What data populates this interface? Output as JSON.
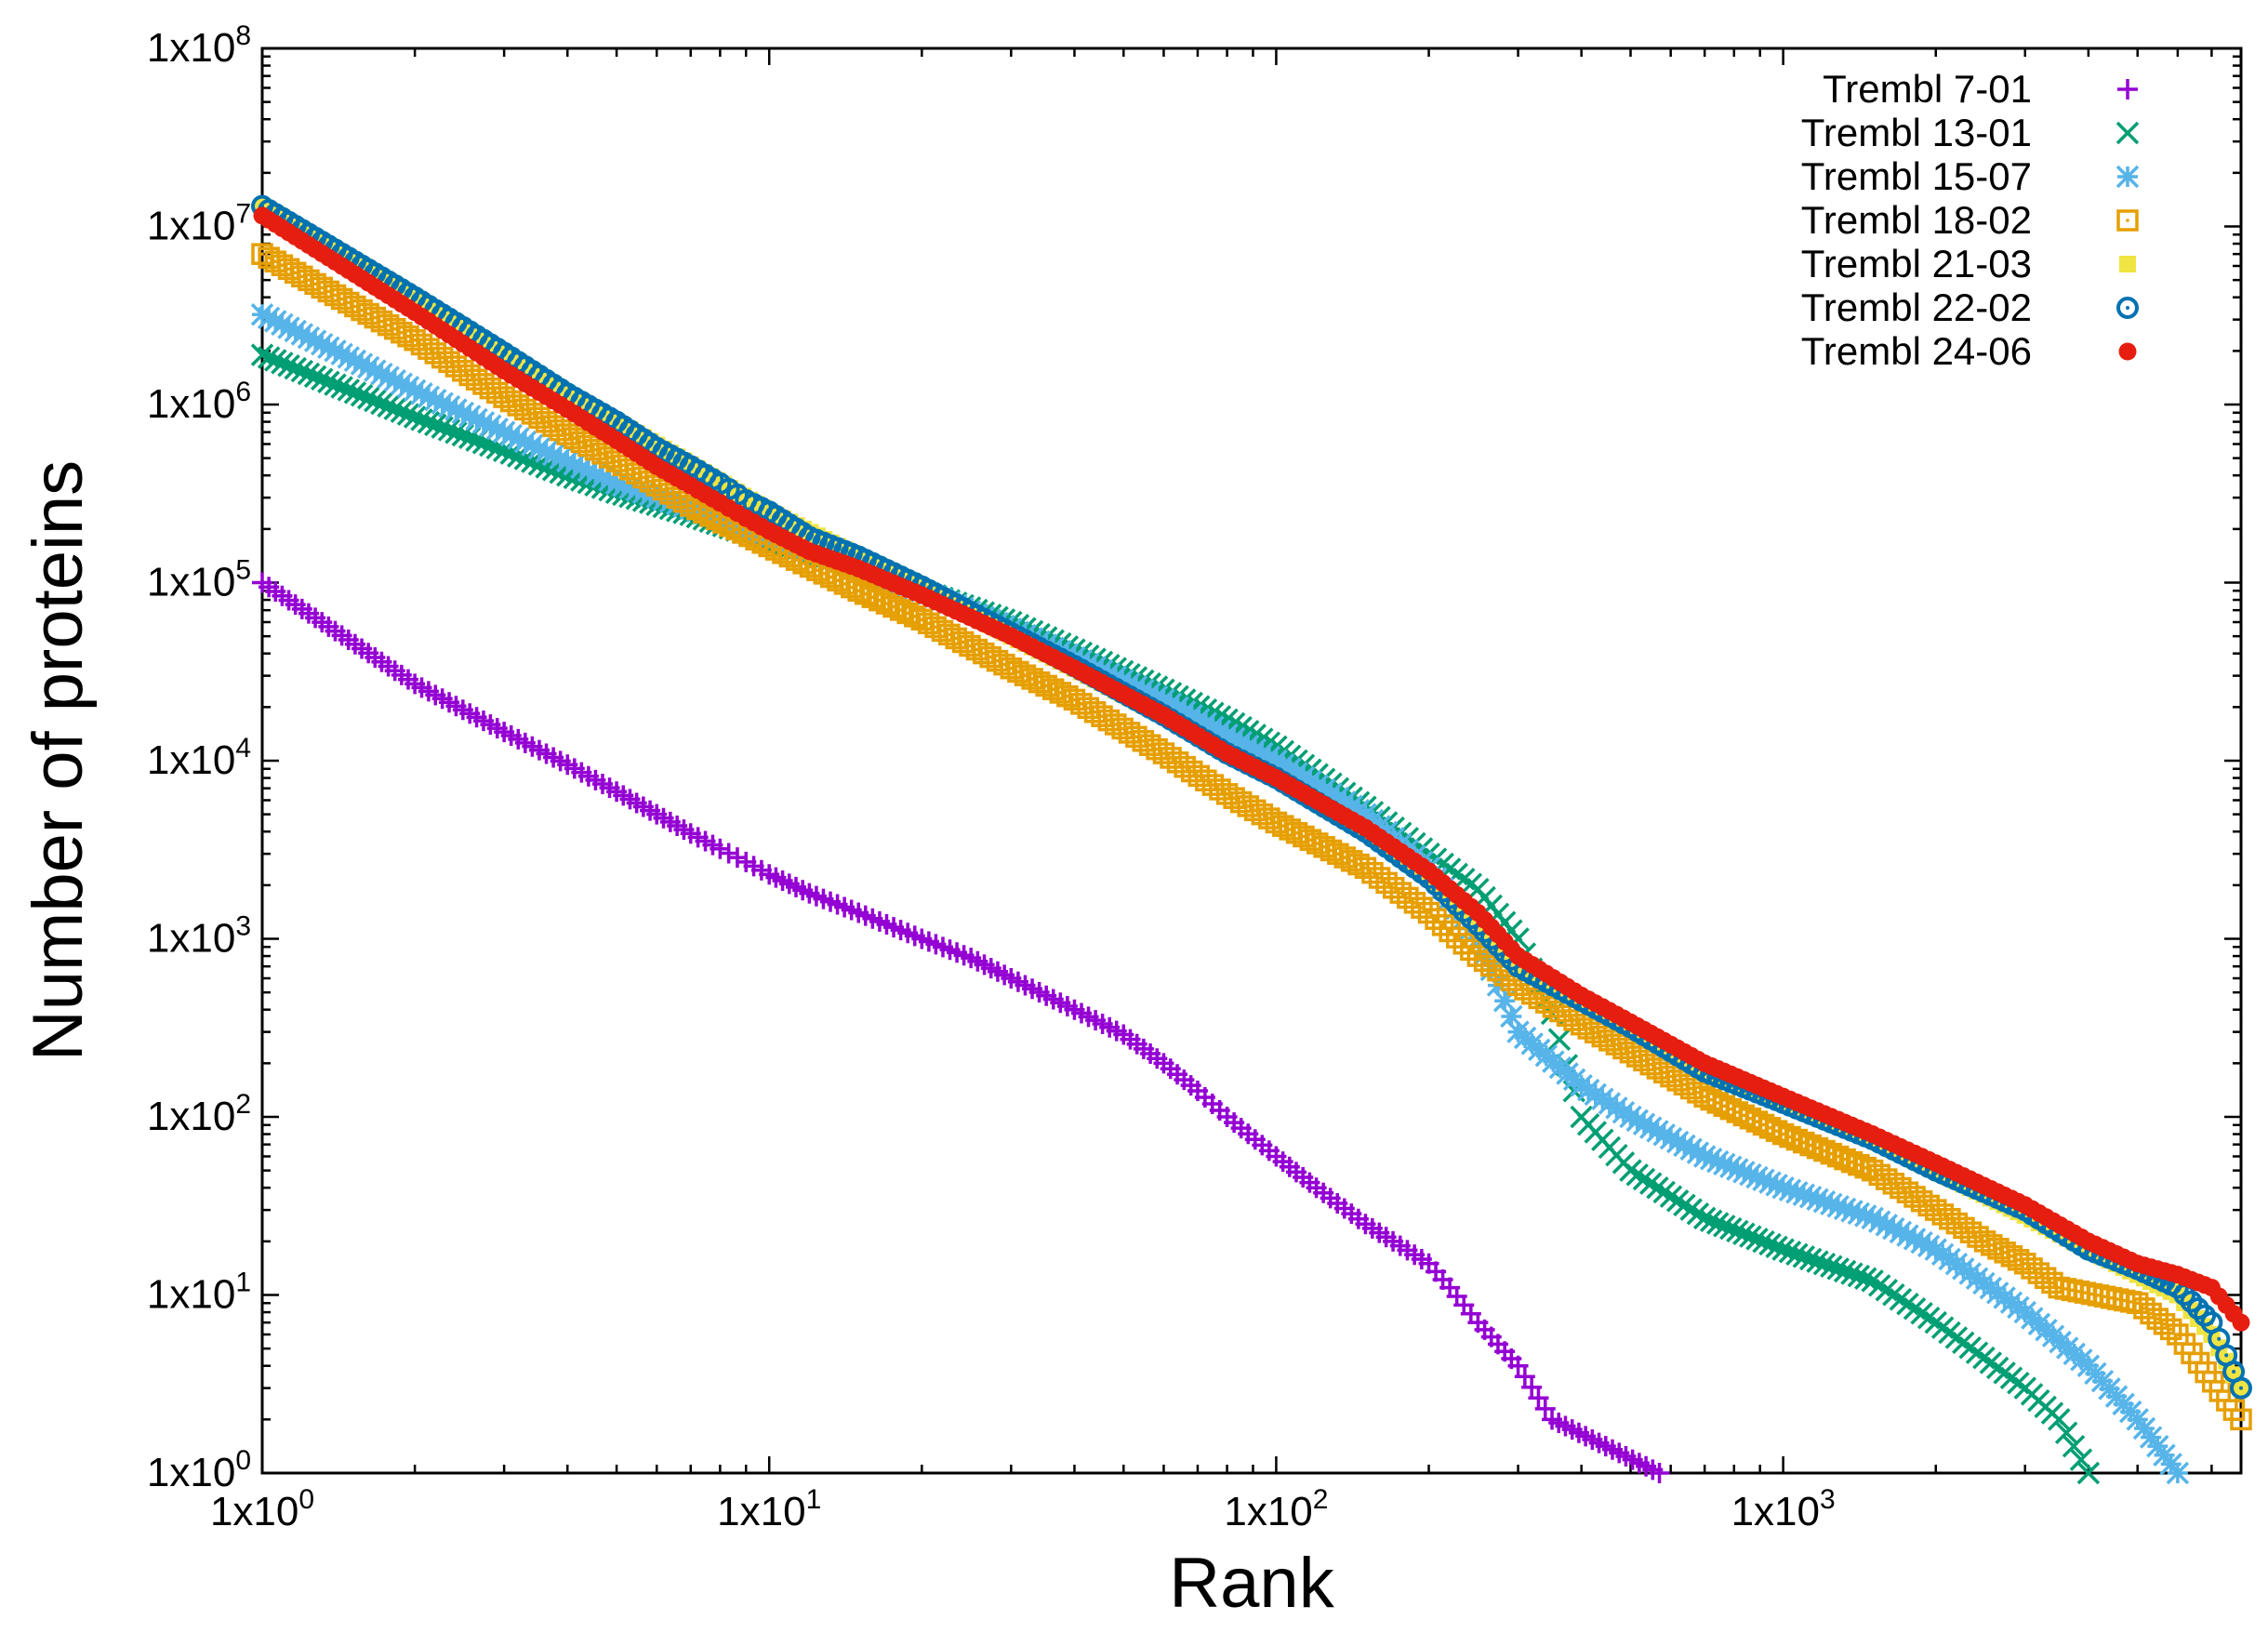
{
  "chart_data": {
    "type": "scatter",
    "xscale": "log",
    "yscale": "log",
    "xlabel": "Rank",
    "ylabel": "Number of proteins",
    "xlim": [
      1,
      8000
    ],
    "ylim": [
      1,
      100000000
    ],
    "grid": false,
    "legend_position": "top-right",
    "x_tick_labels": [
      {
        "value": 1,
        "mantissa": "1x10",
        "exp": "0"
      },
      {
        "value": 10,
        "mantissa": "1x10",
        "exp": "1"
      },
      {
        "value": 100,
        "mantissa": "1x10",
        "exp": "2"
      },
      {
        "value": 1000,
        "mantissa": "1x10",
        "exp": "3"
      }
    ],
    "y_tick_labels": [
      {
        "value": 1,
        "mantissa": "1x10",
        "exp": "0"
      },
      {
        "value": 10,
        "mantissa": "1x10",
        "exp": "1"
      },
      {
        "value": 100,
        "mantissa": "1x10",
        "exp": "2"
      },
      {
        "value": 1000,
        "mantissa": "1x10",
        "exp": "3"
      },
      {
        "value": 10000,
        "mantissa": "1x10",
        "exp": "4"
      },
      {
        "value": 100000,
        "mantissa": "1x10",
        "exp": "5"
      },
      {
        "value": 1000000,
        "mantissa": "1x10",
        "exp": "6"
      },
      {
        "value": 10000000,
        "mantissa": "1x10",
        "exp": "7"
      },
      {
        "value": 100000000,
        "mantissa": "1x10",
        "exp": "8"
      }
    ],
    "series": [
      {
        "name": "Trembl 7-01",
        "marker": "plus",
        "color": "#9400d3",
        "x": [
          1,
          2,
          3,
          4,
          5,
          6,
          7,
          8,
          9,
          10,
          12,
          15,
          20,
          25,
          30,
          40,
          50,
          60,
          70,
          80,
          100,
          120,
          150,
          170,
          200,
          220,
          250,
          300,
          350,
          570
        ],
        "y": [
          100000,
          27000,
          14500,
          9500,
          6700,
          5000,
          3900,
          3200,
          2700,
          2300,
          1800,
          1400,
          1000,
          780,
          600,
          400,
          290,
          200,
          140,
          100,
          60,
          40,
          25,
          20,
          15,
          11,
          7,
          4,
          2,
          1
        ]
      },
      {
        "name": "Trembl 13-01",
        "marker": "cross",
        "color": "#009e73",
        "x": [
          1,
          2,
          3,
          4,
          5,
          7,
          10,
          15,
          20,
          30,
          40,
          60,
          80,
          100,
          150,
          200,
          250,
          300,
          350,
          400,
          500,
          700,
          1000,
          1500,
          2000,
          3000,
          3500,
          4000
        ],
        "y": [
          1900000,
          850000,
          550000,
          400000,
          320000,
          240000,
          170000,
          120000,
          90000,
          60000,
          42000,
          25000,
          17000,
          12000,
          5500,
          3000,
          1900,
          1000,
          380,
          100,
          50,
          27,
          18,
          12,
          7,
          3,
          2,
          1
        ]
      },
      {
        "name": "Trembl 15-07",
        "marker": "star",
        "color": "#56b4e9",
        "x": [
          1,
          2,
          3,
          4,
          5,
          7,
          10,
          15,
          20,
          30,
          40,
          60,
          80,
          100,
          150,
          200,
          250,
          300,
          400,
          500,
          700,
          1000,
          1500,
          2000,
          3000,
          4000,
          5000,
          6000
        ],
        "y": [
          3200000,
          1200000,
          700000,
          480000,
          360000,
          260000,
          180000,
          120000,
          90000,
          55000,
          38000,
          22000,
          14000,
          10000,
          5000,
          2500,
          1000,
          300,
          150,
          100,
          60,
          40,
          27,
          18,
          8,
          4,
          2,
          1
        ]
      },
      {
        "name": "Trembl 18-02",
        "marker": "square",
        "color": "#e69f00",
        "x": [
          1,
          2,
          3,
          4,
          5,
          7,
          10,
          15,
          20,
          30,
          40,
          60,
          80,
          100,
          150,
          200,
          250,
          300,
          400,
          500,
          700,
          1000,
          1500,
          2000,
          2500,
          3000,
          3500,
          5000,
          6000,
          8000
        ],
        "y": [
          7000000,
          2300000,
          1100000,
          680000,
          480000,
          270000,
          160000,
          90000,
          62000,
          33000,
          22000,
          11000,
          6500,
          4500,
          2500,
          1400,
          800,
          550,
          330,
          230,
          130,
          80,
          50,
          30,
          20,
          15,
          11,
          9,
          6,
          2
        ]
      },
      {
        "name": "Trembl 21-03",
        "marker": "filled-square",
        "color": "#f0e442",
        "x": [
          1,
          2,
          3,
          4,
          5,
          7,
          10,
          15,
          20,
          30,
          40,
          60,
          80,
          100,
          150,
          200,
          250,
          300,
          400,
          500,
          700,
          1000,
          1500,
          2000,
          3000,
          4000,
          5000,
          6000,
          7000,
          8000
        ],
        "y": [
          13000000,
          4000000,
          1950000,
          1150000,
          800000,
          460000,
          250000,
          140000,
          95000,
          50000,
          33000,
          18000,
          11000,
          8000,
          4000,
          2200,
          1200,
          700,
          450,
          320,
          180,
          120,
          75,
          50,
          28,
          18,
          13,
          10,
          6,
          3
        ]
      },
      {
        "name": "Trembl 22-02",
        "marker": "ring-dot",
        "color": "#0072b2",
        "x": [
          1,
          2,
          3,
          4,
          5,
          6,
          7,
          8,
          9,
          10,
          12,
          15,
          20,
          30,
          40,
          60,
          80,
          100,
          150,
          200,
          250,
          300,
          400,
          500,
          700,
          1000,
          1500,
          2000,
          3000,
          4000,
          5000,
          6000,
          7000,
          8000
        ],
        "y": [
          13000000,
          4000000,
          1950000,
          1150000,
          800000,
          570000,
          450000,
          360000,
          290000,
          250000,
          180000,
          140000,
          95000,
          52000,
          34000,
          18000,
          11000,
          8000,
          4000,
          2200,
          1200,
          700,
          450,
          320,
          180,
          120,
          75,
          50,
          30,
          18,
          14,
          11,
          7,
          3
        ]
      },
      {
        "name": "Trembl 24-06",
        "marker": "filled-circle",
        "color": "#e51e10",
        "x": [
          1,
          2,
          3,
          4,
          5,
          6,
          7,
          8,
          9,
          10,
          12,
          15,
          20,
          30,
          40,
          60,
          80,
          100,
          150,
          200,
          250,
          300,
          400,
          500,
          700,
          1000,
          1500,
          2000,
          3000,
          4000,
          5000,
          6000,
          7000,
          8000
        ],
        "y": [
          11500000,
          3300000,
          1550000,
          940000,
          630000,
          450000,
          350000,
          280000,
          230000,
          195000,
          150000,
          120000,
          85000,
          50000,
          33000,
          18000,
          11000,
          8000,
          4200,
          2400,
          1400,
          800,
          480,
          340,
          200,
          130,
          80,
          55,
          32,
          20,
          15,
          13,
          11,
          7
        ]
      }
    ]
  }
}
